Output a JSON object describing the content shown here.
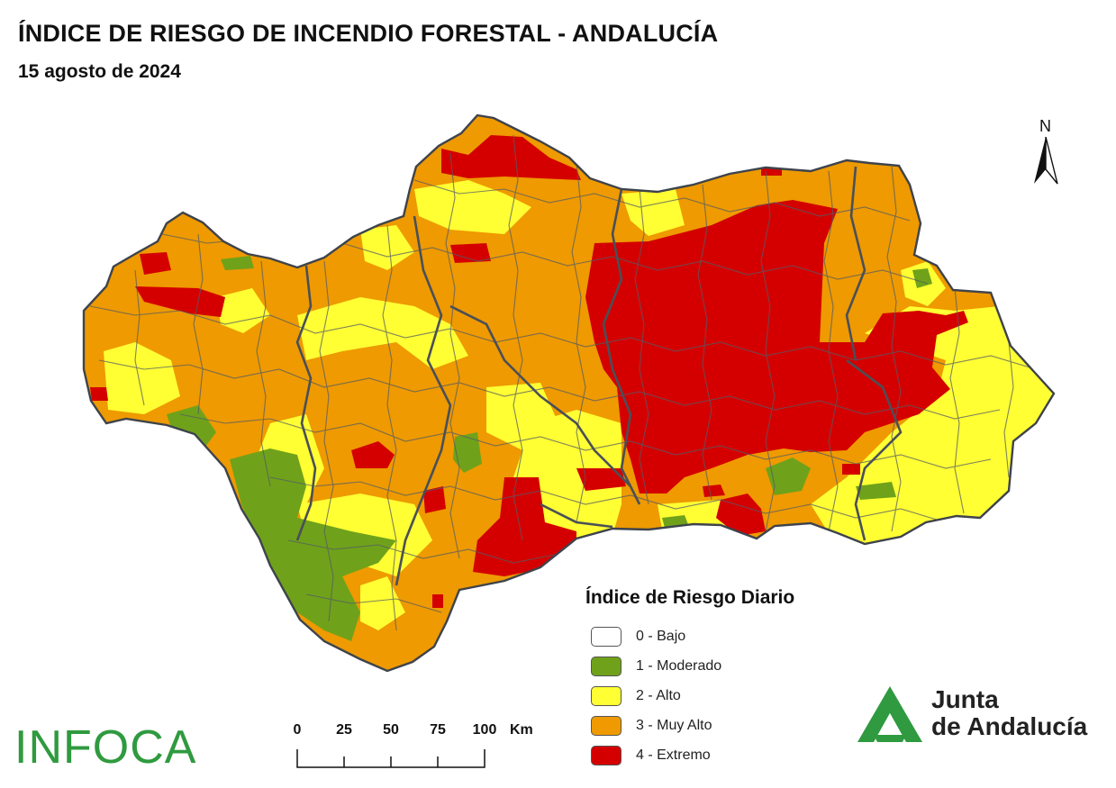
{
  "title": "ÍNDICE DE RIESGO DE INCENDIO FORESTAL - ANDALUCÍA",
  "date": "15 agosto de 2024",
  "north_label": "N",
  "legend": {
    "title": "Índice de Riesgo Diario",
    "items": [
      {
        "label": "0 - Bajo",
        "color": "#ffffff"
      },
      {
        "label": "1 - Moderado",
        "color": "#6fa21a"
      },
      {
        "label": "2 - Alto",
        "color": "#ffff33"
      },
      {
        "label": "3 - Muy Alto",
        "color": "#ee9a00"
      },
      {
        "label": "4 - Extremo",
        "color": "#d40000"
      }
    ]
  },
  "scale": {
    "ticks": [
      "0",
      "25",
      "50",
      "75",
      "100"
    ],
    "unit": "Km"
  },
  "logos": {
    "infoca": "INFOCA",
    "junta_line1": "Junta",
    "junta_line2": "de Andalucía"
  },
  "colors": {
    "bajo": "#ffffff",
    "moderado": "#6fa21a",
    "alto": "#ffff33",
    "muy_alto": "#ee9a00",
    "extremo": "#d40000",
    "border": "#555b66",
    "logo_green": "#2f9a3f"
  }
}
